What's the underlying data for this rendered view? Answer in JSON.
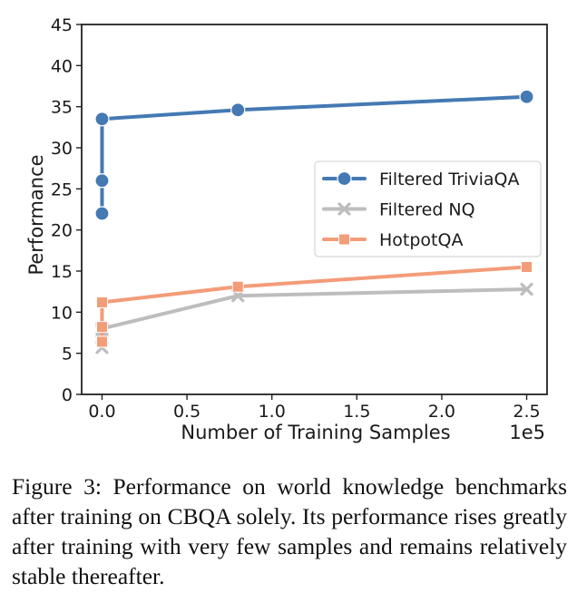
{
  "figure": {
    "caption": "Figure 3: Performance on world knowledge benchmarks after training on CBQA solely. Its performance rises greatly after training with very few samples and remains relatively stable thereafter."
  },
  "chart_data": {
    "type": "line",
    "title": "",
    "xlabel": "Number of Training Samples",
    "ylabel": "Performance",
    "x_offset_label": "1e5",
    "xlim": [
      -0.12,
      2.62
    ],
    "ylim": [
      0,
      45
    ],
    "x_ticks": [
      0.0,
      0.5,
      1.0,
      1.5,
      2.0,
      2.5
    ],
    "x_tick_labels": [
      "0.0",
      "0.5",
      "1.0",
      "1.5",
      "2.0",
      "2.5"
    ],
    "y_ticks": [
      0,
      5,
      10,
      15,
      20,
      25,
      30,
      35,
      40,
      45
    ],
    "y_tick_labels": [
      "0",
      "5",
      "10",
      "15",
      "20",
      "25",
      "30",
      "35",
      "40",
      "45"
    ],
    "grid": false,
    "legend_position": "center-right",
    "series": [
      {
        "name": "Filtered TriviaQA",
        "color": "#4479b3",
        "marker": "circle",
        "x": [
          0.0,
          0.0,
          0.0,
          0.8,
          2.5
        ],
        "y": [
          22.0,
          26.0,
          33.5,
          34.6,
          36.2
        ]
      },
      {
        "name": "Filtered NQ",
        "color": "#bdbdbd",
        "marker": "x",
        "x": [
          0.0,
          0.0,
          0.0,
          0.8,
          2.5
        ],
        "y": [
          5.7,
          7.7,
          8.0,
          12.0,
          12.8
        ]
      },
      {
        "name": "HotpotQA",
        "color": "#f39c78",
        "marker": "square",
        "x": [
          0.0,
          0.0,
          0.0,
          0.8,
          2.5
        ],
        "y": [
          6.4,
          8.2,
          11.2,
          13.1,
          15.5
        ]
      }
    ]
  }
}
